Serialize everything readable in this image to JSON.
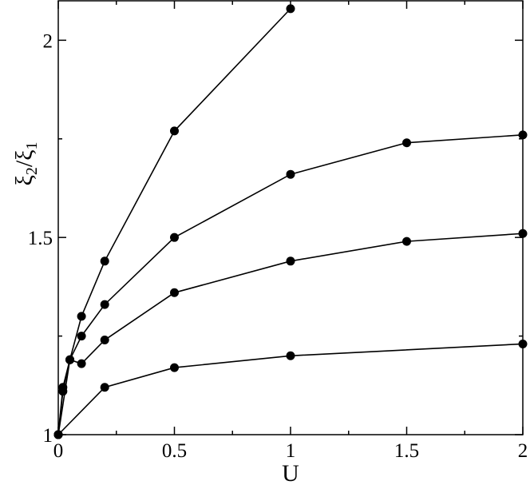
{
  "chart_data": {
    "type": "line",
    "xlabel": "U",
    "ylabel": {
      "sym": "ξ",
      "sub1": "2",
      "sub2": "1"
    },
    "xlim": [
      0,
      2
    ],
    "ylim": [
      1,
      2.1
    ],
    "xticks": [
      {
        "value": 0,
        "label": "0"
      },
      {
        "value": 0.5,
        "label": "0.5"
      },
      {
        "value": 1,
        "label": "1"
      },
      {
        "value": 1.5,
        "label": "1.5"
      },
      {
        "value": 2,
        "label": "2"
      }
    ],
    "yticks": [
      {
        "value": 1,
        "label": "1"
      },
      {
        "value": 1.5,
        "label": "1.5"
      },
      {
        "value": 2,
        "label": "2"
      }
    ],
    "grid": false,
    "marker": "filled-circle",
    "line_color": "#000000",
    "series": [
      {
        "points": [
          [
            0,
            1.0
          ],
          [
            0.02,
            1.12
          ],
          [
            0.05,
            1.19
          ],
          [
            0.1,
            1.3
          ],
          [
            0.2,
            1.44
          ],
          [
            0.5,
            1.77
          ],
          [
            1.0,
            2.08
          ]
        ]
      },
      {
        "points": [
          [
            0,
            1.0
          ],
          [
            0.02,
            1.11
          ],
          [
            0.05,
            1.19
          ],
          [
            0.1,
            1.25
          ],
          [
            0.2,
            1.33
          ],
          [
            0.5,
            1.5
          ],
          [
            1.0,
            1.66
          ],
          [
            1.5,
            1.74
          ],
          [
            2.0,
            1.76
          ]
        ]
      },
      {
        "points": [
          [
            0,
            1.0
          ],
          [
            0.05,
            1.19
          ],
          [
            0.1,
            1.18
          ],
          [
            0.2,
            1.24
          ],
          [
            0.5,
            1.36
          ],
          [
            1.0,
            1.44
          ],
          [
            1.5,
            1.49
          ],
          [
            2.0,
            1.51
          ]
        ]
      },
      {
        "points": [
          [
            0,
            1.0
          ],
          [
            0.2,
            1.12
          ],
          [
            0.5,
            1.17
          ],
          [
            1.0,
            1.2
          ],
          [
            2.0,
            1.23
          ]
        ]
      }
    ]
  }
}
